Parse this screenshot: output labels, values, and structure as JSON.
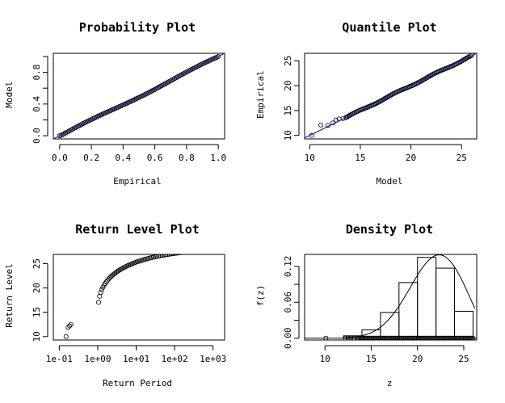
{
  "chart_data": [
    {
      "type": "scatter",
      "title": "Probability Plot",
      "xlabel": "Empirical",
      "ylabel": "Model",
      "xlim": [
        -0.04,
        1.04
      ],
      "ylim": [
        -0.04,
        1.04
      ],
      "xticks": [
        {
          "v": 0,
          "label": "0.0"
        },
        {
          "v": 0.2,
          "label": "0.2"
        },
        {
          "v": 0.4,
          "label": "0.4"
        },
        {
          "v": 0.6,
          "label": "0.6"
        },
        {
          "v": 0.8,
          "label": "0.8"
        },
        {
          "v": 1,
          "label": "1.0"
        }
      ],
      "yticks": [
        {
          "v": 0,
          "label": "0.0"
        },
        {
          "v": 0.4,
          "label": "0.4"
        },
        {
          "v": 0.8,
          "label": "0.8"
        }
      ],
      "yminor": [
        0.2,
        0.6,
        1.0
      ],
      "reference_line": [
        [
          -0.04,
          -0.04
        ],
        [
          1.04,
          1.04
        ]
      ],
      "points_note": "dense points along diagonal, x from 0.0 to 1.0"
    },
    {
      "type": "scatter",
      "title": "Quantile Plot",
      "xlabel": "Model",
      "ylabel": "Empirical",
      "xlim": [
        9.5,
        26.5
      ],
      "ylim": [
        9.3,
        26.5
      ],
      "xticks": [
        {
          "v": 10,
          "label": "10"
        },
        {
          "v": 15,
          "label": "15"
        },
        {
          "v": 20,
          "label": "20"
        },
        {
          "v": 25,
          "label": "25"
        }
      ],
      "yticks": [
        {
          "v": 10,
          "label": "10"
        },
        {
          "v": 15,
          "label": "15"
        },
        {
          "v": 20,
          "label": "20"
        },
        {
          "v": 25,
          "label": "25"
        }
      ],
      "reference_line": [
        [
          9.5,
          9.5
        ],
        [
          26.5,
          26.5
        ]
      ],
      "outlier_points": [
        [
          10.2,
          10.0
        ],
        [
          11.1,
          12.1
        ],
        [
          11.8,
          12.0
        ],
        [
          12.3,
          12.5
        ],
        [
          12.6,
          13.1
        ],
        [
          12.9,
          13.3
        ],
        [
          13.3,
          13.4
        ],
        [
          13.6,
          13.6
        ]
      ],
      "points_range": [
        13.6,
        26.0
      ]
    },
    {
      "type": "scatter",
      "title": "Return Level Plot",
      "xlabel": "Return Period",
      "ylabel": "Return Level",
      "xscale": "log",
      "xlim": [
        0.07,
        2000
      ],
      "ylim": [
        9.3,
        26.9
      ],
      "xticks": [
        {
          "v": 0.1,
          "label": "1e-01"
        },
        {
          "v": 1,
          "label": "1e+00"
        },
        {
          "v": 10,
          "label": "1e+01"
        },
        {
          "v": 100,
          "label": "1e+02"
        },
        {
          "v": 1000,
          "label": "1e+03"
        }
      ],
      "yticks": [
        {
          "v": 10,
          "label": "10"
        },
        {
          "v": 15,
          "label": "15"
        },
        {
          "v": 20,
          "label": "20"
        },
        {
          "v": 25,
          "label": "25"
        }
      ],
      "curve": {
        "location": 21.0,
        "scale": 2.9,
        "shape": -0.4
      },
      "outlier_points": [
        [
          0.15,
          10.0
        ],
        [
          0.17,
          11.9
        ],
        [
          0.185,
          12.2
        ],
        [
          0.2,
          12.5
        ]
      ],
      "period_range": [
        0.2,
        1000
      ]
    },
    {
      "type": "histogram",
      "title": "Density Plot",
      "xlabel": "z",
      "ylabel": "f(z)",
      "xlim": [
        7.8,
        26.4
      ],
      "ylim": [
        -0.003,
        0.14
      ],
      "xticks": [
        {
          "v": 10,
          "label": "10"
        },
        {
          "v": 15,
          "label": "15"
        },
        {
          "v": 20,
          "label": "20"
        },
        {
          "v": 25,
          "label": "25"
        }
      ],
      "yticks": [
        {
          "v": 0,
          "label": "0.00"
        },
        {
          "v": 0.06,
          "label": "0.06"
        },
        {
          "v": 0.12,
          "label": "0.12"
        }
      ],
      "yminor": [
        0.03,
        0.09
      ],
      "bins": [
        {
          "x0": 10,
          "x1": 12,
          "density": 0.0
        },
        {
          "x0": 12,
          "x1": 14,
          "density": 0.004
        },
        {
          "x0": 14,
          "x1": 16,
          "density": 0.014
        },
        {
          "x0": 16,
          "x1": 18,
          "density": 0.043
        },
        {
          "x0": 18,
          "x1": 20,
          "density": 0.093
        },
        {
          "x0": 20,
          "x1": 22,
          "density": 0.135
        },
        {
          "x0": 22,
          "x1": 24,
          "density": 0.117
        },
        {
          "x0": 24,
          "x1": 26,
          "density": 0.045
        }
      ],
      "density_curve": {
        "location": 21.0,
        "scale": 2.9,
        "shape": -0.4
      },
      "rug_points": [
        10.1,
        12.2,
        12.5,
        12.8,
        13.1
      ]
    }
  ]
}
